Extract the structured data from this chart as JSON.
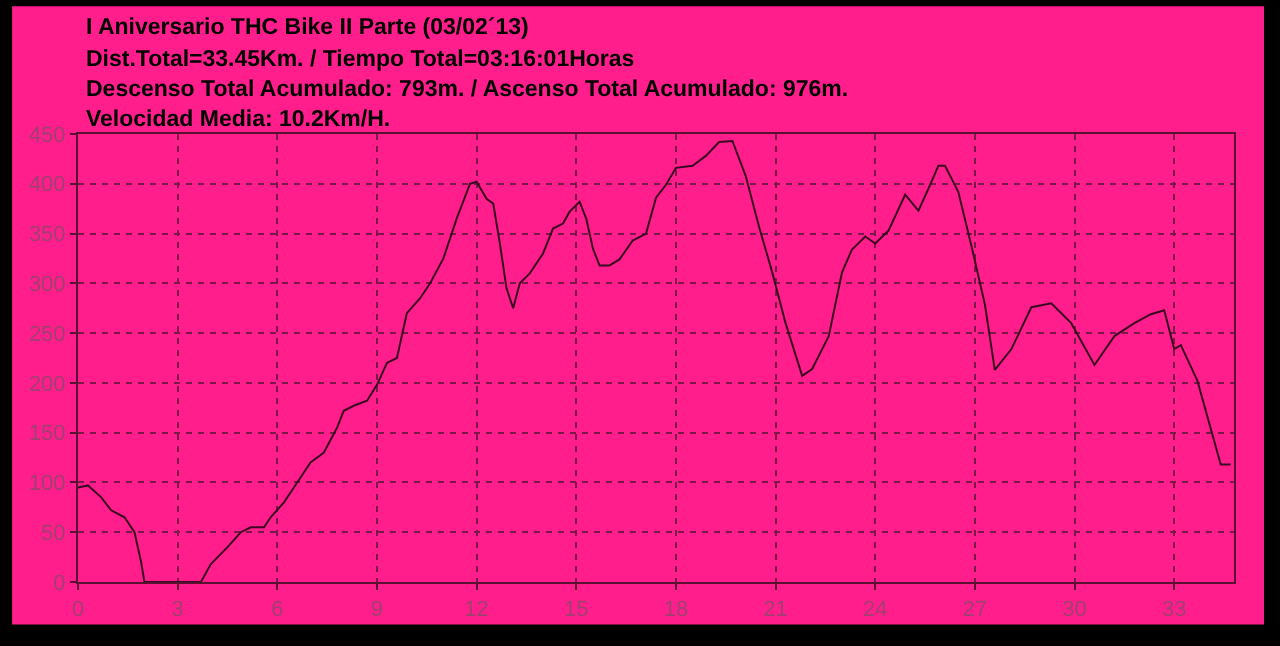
{
  "chart_data": {
    "type": "line",
    "title": "I Aniversario THC Bike II Parte (03/02´13)",
    "annotations": [
      "Dist.Total=33.45Km. / Tiempo Total=03:16:01Horas",
      "Descenso Total Acumulado: 793m. / Ascenso Total Acumulado: 976m.",
      "Velocidad Media: 10.2Km/H."
    ],
    "x": [
      0,
      0.3,
      0.7,
      1.0,
      1.4,
      1.7,
      1.9,
      2.0,
      3.7,
      4.0,
      4.5,
      4.9,
      5.2,
      5.6,
      5.8,
      6.2,
      6.6,
      7.0,
      7.4,
      7.8,
      8.0,
      8.3,
      8.7,
      9.0,
      9.3,
      9.6,
      9.9,
      10.3,
      10.6,
      11.0,
      11.4,
      11.8,
      12.0,
      12.3,
      12.5,
      12.7,
      12.9,
      13.1,
      13.3,
      13.6,
      14.0,
      14.3,
      14.6,
      14.8,
      15.1,
      15.3,
      15.5,
      15.7,
      16.0,
      16.3,
      16.7,
      17.1,
      17.4,
      17.7,
      18.0,
      18.5,
      18.9,
      19.3,
      19.7,
      20.1,
      20.5,
      20.9,
      21.3,
      21.8,
      22.1,
      22.6,
      23.0,
      23.3,
      23.7,
      24.0,
      24.4,
      24.9,
      25.3,
      25.6,
      25.9,
      26.1,
      26.5,
      26.9,
      27.3,
      27.6,
      28.1,
      28.7,
      29.3,
      29.9,
      30.6,
      31.2,
      31.8,
      32.3,
      32.7,
      33.0,
      33.2,
      33.7,
      34.4,
      34.7
    ],
    "series": [
      {
        "color": "#3a0a20",
        "values": [
          95,
          97,
          85,
          72,
          65,
          50,
          20,
          0,
          0,
          18,
          35,
          50,
          55,
          55,
          65,
          80,
          100,
          120,
          130,
          155,
          172,
          177,
          182,
          198,
          220,
          225,
          270,
          285,
          300,
          325,
          365,
          400,
          402,
          385,
          380,
          340,
          295,
          275,
          300,
          310,
          330,
          355,
          360,
          372,
          382,
          365,
          335,
          318,
          318,
          324,
          343,
          350,
          386,
          399,
          416,
          418,
          428,
          442,
          443,
          408,
          357,
          311,
          260,
          207,
          214,
          247,
          311,
          334,
          347,
          340,
          353,
          389,
          373,
          395,
          418,
          418,
          392,
          337,
          279,
          213,
          234,
          276,
          280,
          260,
          218,
          247,
          260,
          269,
          273,
          234,
          238,
          202,
          118,
          118
        ]
      }
    ],
    "xlim": [
      0,
      34.8
    ],
    "ylim": [
      0,
      450
    ],
    "xticks": [
      0,
      3,
      6,
      9,
      12,
      15,
      18,
      21,
      24,
      27,
      30,
      33
    ],
    "yticks": [
      0,
      50,
      100,
      150,
      200,
      250,
      300,
      350,
      400,
      450
    ],
    "grid": true,
    "line_style": "solid",
    "marker": "none"
  }
}
